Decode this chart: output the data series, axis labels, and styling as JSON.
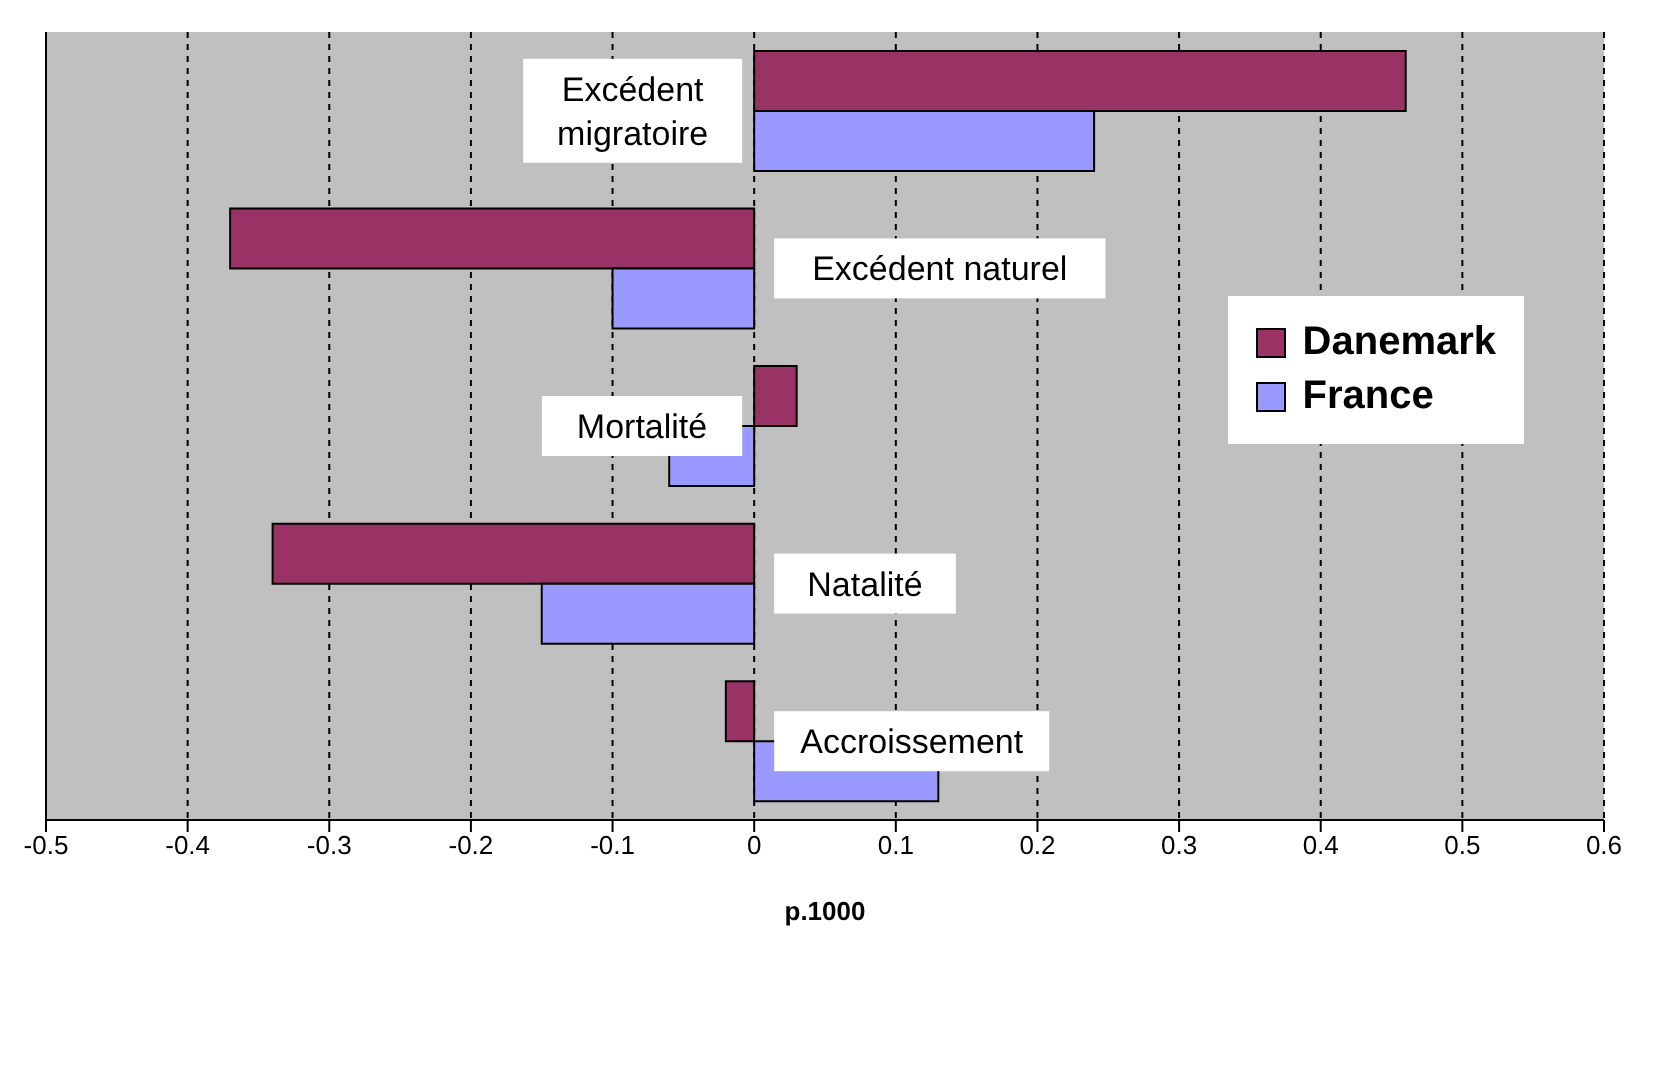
{
  "chart_data": {
    "type": "bar",
    "orientation": "horizontal",
    "xlabel": "p.1000",
    "categories": [
      "Excédent migratoire",
      "Excédent naturel",
      "Mortalité",
      "Natalité",
      "Accroissement"
    ],
    "series": [
      {
        "name": "Danemark",
        "color": "#993366",
        "values": [
          0.46,
          -0.37,
          0.03,
          -0.34,
          -0.02
        ]
      },
      {
        "name": "France",
        "color": "#9999ff",
        "values": [
          0.24,
          -0.1,
          -0.06,
          -0.15,
          0.13
        ]
      }
    ],
    "xlim": [
      -0.5,
      0.6
    ],
    "xticks": [
      -0.5,
      -0.4,
      -0.3,
      -0.2,
      -0.1,
      0,
      0.1,
      0.2,
      0.3,
      0.4,
      0.5,
      0.6
    ],
    "grid": "x",
    "legend": "right"
  }
}
